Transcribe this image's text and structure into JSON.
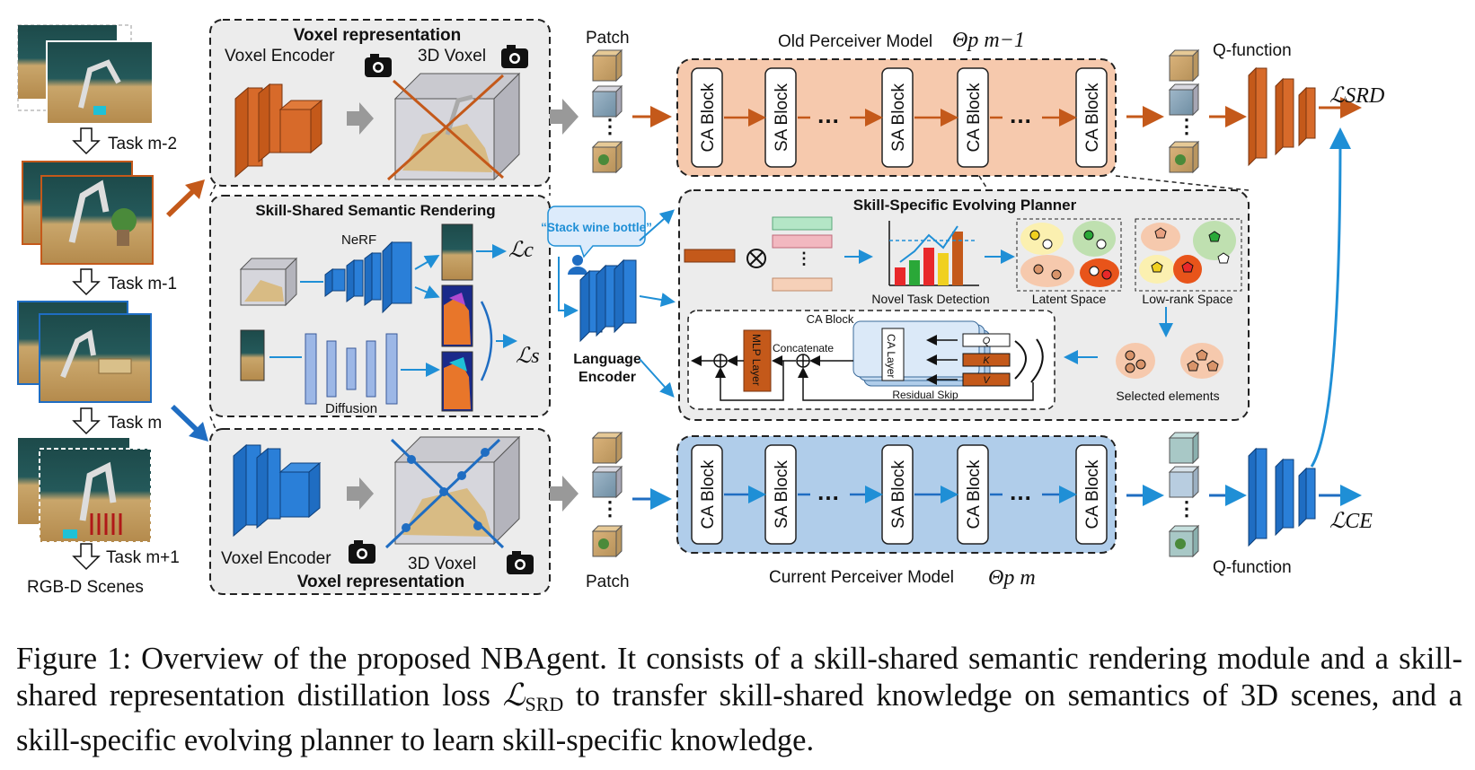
{
  "tasks": {
    "task_m2": "Task m-2",
    "task_m1": "Task m-1",
    "task_m": "Task m",
    "task_m_plus1": "Task m+1",
    "scenes_label": "RGB-D Scenes"
  },
  "voxel_top": {
    "title": "Voxel representation",
    "encoder_label": "Voxel Encoder",
    "voxel_label": "3D Voxel"
  },
  "voxel_bottom": {
    "title": "Voxel representation",
    "encoder_label": "Voxel Encoder",
    "voxel_label": "3D Voxel"
  },
  "rendering": {
    "title": "Skill-Shared Semantic Rendering",
    "nerf_label": "NeRF",
    "diffusion_label": "Diffusion",
    "loss_c": "ℒc",
    "loss_s": "ℒs"
  },
  "language": {
    "instruction": "“Stack wine bottle”",
    "encoder_label_1": "Language",
    "encoder_label_2": "Encoder"
  },
  "patch_top": "Patch",
  "patch_bottom": "Patch",
  "old_model": {
    "title": "Old Perceiver Model",
    "symbol": "Θp m−1",
    "blocks": [
      "CA Block",
      "SA Block",
      "SA Block",
      "CA Block",
      "CA Block"
    ],
    "dots": "…"
  },
  "current_model": {
    "title": "Current Perceiver Model",
    "symbol": "Θp m",
    "blocks": [
      "CA Block",
      "SA Block",
      "SA Block",
      "CA Block",
      "CA Block"
    ],
    "dots": "…"
  },
  "planner": {
    "title": "Skill-Specific Evolving Planner",
    "detection_label": "Novel Task Detection",
    "latent_label": "Latent Space",
    "lowrank_label": "Low-rank Space",
    "selected_label": "Selected elements",
    "ca_block_label": "CA Block",
    "mlp_label": "MLP Layer",
    "ca_layer_label": "CA Layer",
    "concat_label": "Concatenate",
    "residual_label": "Residual Skip",
    "q": "Q",
    "k": "K",
    "v": "V"
  },
  "q_top": {
    "label": "Q-function",
    "loss": "ℒSRD"
  },
  "q_bottom": {
    "label": "Q-function",
    "loss": "ℒCE"
  },
  "caption": {
    "part1": "Figure 1:  Overview of the proposed NBAgent.  It consists of a skill-shared semantic rendering module and a skill-shared representation distillation loss ",
    "loss_symbol": "ℒ",
    "loss_sub": "SRD",
    "part2": " to transfer skill-shared knowledge on semantics of 3D scenes, and a skill-specific evolving planner to learn skill-specific knowledge."
  },
  "colors": {
    "orange": "#c4591a",
    "blue": "#1f6dc2",
    "old_fill": "#f6c9ad",
    "current_fill": "#b0cdea",
    "panel_bg": "#ececec"
  }
}
